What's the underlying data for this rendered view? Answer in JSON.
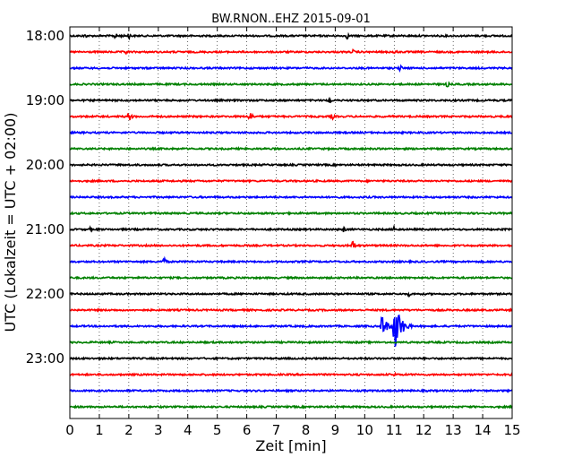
{
  "chart_data": {
    "type": "line",
    "title": "BW.RNON..EHZ 2015-09-01",
    "xlabel": "Zeit  [min]",
    "ylabel": "UTC (Lokalzeit = UTC + 02:00)",
    "xlim": [
      0,
      15
    ],
    "x_ticks": [
      "0",
      "1",
      "2",
      "3",
      "4",
      "5",
      "6",
      "7",
      "8",
      "9",
      "10",
      "11",
      "12",
      "13",
      "14",
      "15"
    ],
    "y_ticks": [
      "18:00",
      "19:00",
      "20:00",
      "21:00",
      "22:00",
      "23:00"
    ],
    "grid": "vertical dotted",
    "colors": [
      "#000000",
      "#ff0000",
      "#0000ff",
      "#008000"
    ],
    "traces": [
      {
        "start": "18:00",
        "color": "#000000",
        "events": [
          {
            "min": 0.5,
            "amp": 0.3,
            "dur": 0.3
          },
          {
            "min": 1.5,
            "amp": 0.3,
            "dur": 1.0
          },
          {
            "min": 2.0,
            "amp": 0.35,
            "dur": 0.3
          },
          {
            "min": 9.4,
            "amp": 0.4,
            "dur": 0.2
          }
        ]
      },
      {
        "start": "18:15",
        "color": "#ff0000",
        "events": [
          {
            "min": 1.9,
            "amp": 0.3,
            "dur": 0.3
          },
          {
            "min": 9.6,
            "amp": 0.3,
            "dur": 0.2
          },
          {
            "min": 11.0,
            "amp": 0.3,
            "dur": 0.3
          }
        ]
      },
      {
        "start": "18:30",
        "color": "#0000ff",
        "events": [
          {
            "min": 11.2,
            "amp": 0.4,
            "dur": 0.2
          }
        ]
      },
      {
        "start": "18:45",
        "color": "#008000",
        "events": [
          {
            "min": 12.8,
            "amp": 0.4,
            "dur": 0.2
          }
        ]
      },
      {
        "start": "19:00",
        "color": "#000000",
        "events": [
          {
            "min": 8.8,
            "amp": 0.6,
            "dur": 0.15
          }
        ]
      },
      {
        "start": "19:15",
        "color": "#ff0000",
        "events": [
          {
            "min": 2.0,
            "amp": 0.6,
            "dur": 0.3
          },
          {
            "min": 6.1,
            "amp": 0.6,
            "dur": 0.3
          },
          {
            "min": 8.9,
            "amp": 0.4,
            "dur": 0.2
          }
        ]
      },
      {
        "start": "19:30",
        "color": "#0000ff",
        "events": []
      },
      {
        "start": "19:45",
        "color": "#008000",
        "events": []
      },
      {
        "start": "20:00",
        "color": "#000000",
        "events": []
      },
      {
        "start": "20:15",
        "color": "#ff0000",
        "events": []
      },
      {
        "start": "20:30",
        "color": "#0000ff",
        "events": []
      },
      {
        "start": "20:45",
        "color": "#008000",
        "events": []
      },
      {
        "start": "21:00",
        "color": "#000000",
        "events": [
          {
            "min": 0.7,
            "amp": 0.3,
            "dur": 0.2
          },
          {
            "min": 9.3,
            "amp": 0.5,
            "dur": 0.15
          },
          {
            "min": 11.0,
            "amp": 0.5,
            "dur": 0.2
          }
        ]
      },
      {
        "start": "21:15",
        "color": "#ff0000",
        "events": [
          {
            "min": 9.6,
            "amp": 0.6,
            "dur": 0.3
          }
        ]
      },
      {
        "start": "21:30",
        "color": "#0000ff",
        "events": [
          {
            "min": 3.2,
            "amp": 0.6,
            "dur": 0.2
          }
        ]
      },
      {
        "start": "21:45",
        "color": "#008000",
        "events": []
      },
      {
        "start": "22:00",
        "color": "#000000",
        "events": [
          {
            "min": 11.5,
            "amp": 0.3,
            "dur": 0.2
          }
        ]
      },
      {
        "start": "22:15",
        "color": "#ff0000",
        "events": []
      },
      {
        "start": "22:30",
        "color": "#0000ff",
        "events": [
          {
            "min": 10.6,
            "amp": 1.6,
            "dur": 0.4
          },
          {
            "min": 11.0,
            "amp": 3.2,
            "dur": 0.6
          }
        ]
      },
      {
        "start": "22:45",
        "color": "#008000",
        "events": []
      },
      {
        "start": "23:00",
        "color": "#000000",
        "events": []
      },
      {
        "start": "23:15",
        "color": "#ff0000",
        "events": [
          {
            "min": 11.0,
            "amp": 0.3,
            "dur": 0.2
          }
        ]
      },
      {
        "start": "23:30",
        "color": "#0000ff",
        "events": []
      },
      {
        "start": "23:45",
        "color": "#008000",
        "events": []
      }
    ]
  }
}
